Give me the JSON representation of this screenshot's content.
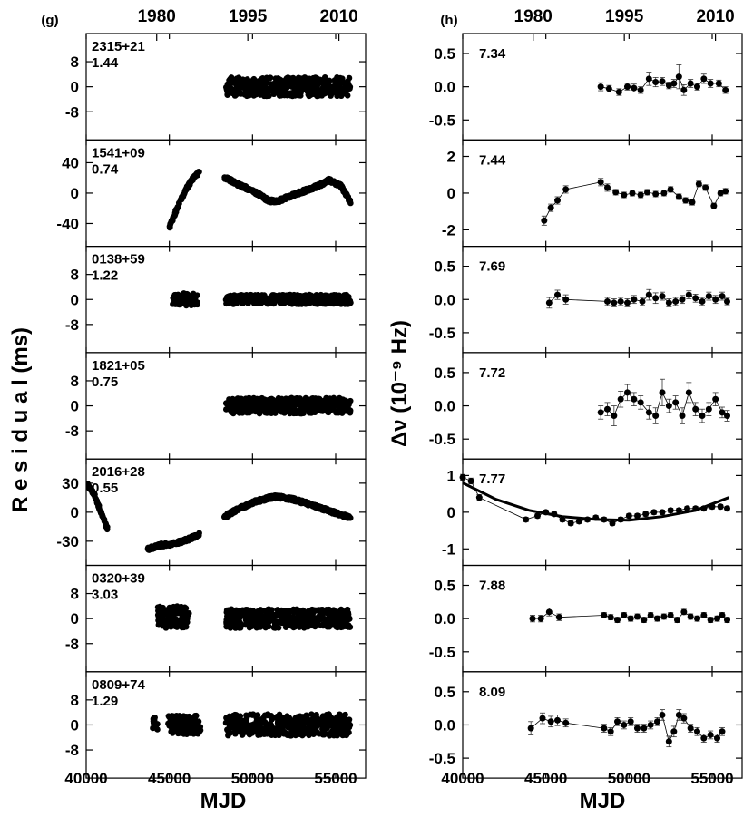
{
  "figure": {
    "left_column": {
      "panel_letter": "(g)",
      "ylabel": "R e s i d u a l  (ms)",
      "xlabel": "MJD",
      "top_ticks": [
        "1980",
        "1995",
        "2010"
      ],
      "bottom_ticks": [
        "40000",
        "45000",
        "50000",
        "55000"
      ]
    },
    "right_column": {
      "panel_letter": "(h)",
      "ylabel": "Δν (10⁻⁹ Hz)",
      "xlabel": "MJD",
      "top_ticks": [
        "1980",
        "1995",
        "2010"
      ],
      "bottom_ticks": [
        "40000",
        "45000",
        "50000",
        "55000"
      ]
    }
  },
  "chart_data": [
    {
      "type": "scatter",
      "column": "left",
      "name": "2315+21",
      "value": "1.44",
      "ylim": [
        -17,
        17
      ],
      "yticks": [
        {
          "v": 8,
          "label": "8"
        },
        {
          "v": 0,
          "label": "0"
        },
        {
          "v": -8,
          "label": "-8"
        }
      ],
      "segments": [
        {
          "x0": 48400,
          "x1": 55900,
          "y_mid": 0,
          "y_spread": 3
        }
      ]
    },
    {
      "type": "scatter",
      "column": "left",
      "name": "1541+09",
      "value": "0.74",
      "ylim": [
        -70,
        70
      ],
      "yticks": [
        {
          "v": 40,
          "label": "40"
        },
        {
          "v": 0,
          "label": "0"
        },
        {
          "v": -40,
          "label": "-40"
        }
      ],
      "segments": [
        {
          "x0": 45000,
          "x1": 46800,
          "curve": [
            [
              45000,
              -45
            ],
            [
              45500,
              -18
            ],
            [
              46000,
              5
            ],
            [
              46500,
              22
            ],
            [
              46800,
              27
            ]
          ]
        },
        {
          "x0": 48300,
          "x1": 55900,
          "curve": [
            [
              48300,
              21
            ],
            [
              49000,
              13
            ],
            [
              50000,
              3
            ],
            [
              51000,
              -10
            ],
            [
              51500,
              -11
            ],
            [
              52000,
              -6
            ],
            [
              53000,
              2
            ],
            [
              54000,
              10
            ],
            [
              54600,
              17
            ],
            [
              55300,
              10
            ],
            [
              55900,
              -12
            ]
          ]
        }
      ]
    },
    {
      "type": "scatter",
      "column": "left",
      "name": "0138+59",
      "value": "1.22",
      "ylim": [
        -17,
        17
      ],
      "yticks": [
        {
          "v": 8,
          "label": "8"
        },
        {
          "v": 0,
          "label": "0"
        },
        {
          "v": -8,
          "label": "-8"
        }
      ],
      "segments": [
        {
          "x0": 45200,
          "x1": 46700,
          "y_mid": 0,
          "y_spread": 2
        },
        {
          "x0": 48400,
          "x1": 55900,
          "y_mid": 0,
          "y_spread": 1.5
        }
      ]
    },
    {
      "type": "scatter",
      "column": "left",
      "name": "1821+05",
      "value": "0.75",
      "ylim": [
        -17,
        17
      ],
      "yticks": [
        {
          "v": 8,
          "label": "8"
        },
        {
          "v": 0,
          "label": "0"
        },
        {
          "v": -8,
          "label": "-8"
        }
      ],
      "segments": [
        {
          "x0": 48400,
          "x1": 55900,
          "y_mid": 0,
          "y_spread": 2.5
        }
      ]
    },
    {
      "type": "scatter",
      "column": "left",
      "name": "2016+28",
      "value": "0.55",
      "ylim": [
        -55,
        55
      ],
      "yticks": [
        {
          "v": 30,
          "label": "30"
        },
        {
          "v": 0,
          "label": "0"
        },
        {
          "v": -30,
          "label": "-30"
        }
      ],
      "segments": [
        {
          "x0": 40000,
          "x1": 41300,
          "curve": [
            [
              40000,
              30
            ],
            [
              40500,
              18
            ],
            [
              41000,
              -5
            ],
            [
              41300,
              -18
            ]
          ]
        },
        {
          "x0": 43700,
          "x1": 46800,
          "curve": [
            [
              43700,
              -38
            ],
            [
              44500,
              -34
            ],
            [
              45200,
              -33
            ],
            [
              46000,
              -29
            ],
            [
              46800,
              -23
            ]
          ]
        },
        {
          "x0": 48300,
          "x1": 55900,
          "curve": [
            [
              48300,
              -5
            ],
            [
              49000,
              2
            ],
            [
              50000,
              10
            ],
            [
              51000,
              15
            ],
            [
              51500,
              16
            ],
            [
              52500,
              13
            ],
            [
              53500,
              8
            ],
            [
              54500,
              2
            ],
            [
              55900,
              -6
            ]
          ]
        }
      ]
    },
    {
      "type": "scatter",
      "column": "left",
      "name": "0320+39",
      "value": "3.03",
      "ylim": [
        -17,
        17
      ],
      "yticks": [
        {
          "v": 8,
          "label": "8"
        },
        {
          "v": 0,
          "label": "0"
        },
        {
          "v": -8,
          "label": "-8"
        }
      ],
      "segments": [
        {
          "x0": 44300,
          "x1": 46200,
          "y_mid": 0.5,
          "y_spread": 3.5
        },
        {
          "x0": 48400,
          "x1": 55900,
          "y_mid": 0,
          "y_spread": 3
        }
      ]
    },
    {
      "type": "scatter",
      "column": "left",
      "name": "0809+74",
      "value": "1.29",
      "ylim": [
        -17,
        17
      ],
      "yticks": [
        {
          "v": 8,
          "label": "8"
        },
        {
          "v": 0,
          "label": "0"
        },
        {
          "v": -8,
          "label": "-8"
        }
      ],
      "segments": [
        {
          "x0": 44000,
          "x1": 44300,
          "y_mid": 0.5,
          "y_spread": 2
        },
        {
          "x0": 44900,
          "x1": 46900,
          "y_mid": 0,
          "y_spread": 3
        },
        {
          "x0": 48400,
          "x1": 55900,
          "y_mid": 0,
          "y_spread": 3.5
        }
      ]
    },
    {
      "type": "line",
      "column": "right",
      "name": "7.34",
      "ylim": [
        -0.8,
        0.8
      ],
      "yticks": [
        {
          "v": 0.5,
          "label": "0.5"
        },
        {
          "v": 0,
          "label": "0.0"
        },
        {
          "v": -0.5,
          "label": "-0.5"
        }
      ],
      "x": [
        48300,
        48800,
        49400,
        49900,
        50300,
        50700,
        51200,
        51600,
        52000,
        52400,
        52700,
        53000,
        53300,
        53700,
        54100,
        54500,
        54900,
        55400,
        55800
      ],
      "y": [
        0.0,
        -0.03,
        -0.08,
        0.0,
        -0.02,
        -0.05,
        0.12,
        0.07,
        0.08,
        0.02,
        0.05,
        0.15,
        -0.05,
        0.05,
        0.0,
        0.12,
        0.05,
        0.05,
        -0.05
      ],
      "err": [
        0.06,
        0.05,
        0.05,
        0.05,
        0.06,
        0.05,
        0.1,
        0.07,
        0.06,
        0.05,
        0.06,
        0.18,
        0.08,
        0.06,
        0.05,
        0.07,
        0.06,
        0.05,
        0.05
      ]
    },
    {
      "type": "line",
      "column": "right",
      "name": "7.44",
      "ylim": [
        -2.9,
        2.9
      ],
      "yticks": [
        {
          "v": 2,
          "label": "2"
        },
        {
          "v": 0,
          "label": "0"
        },
        {
          "v": -2,
          "label": "-2"
        }
      ],
      "x": [
        44900,
        45300,
        45700,
        46200,
        48300,
        48700,
        49200,
        49700,
        50200,
        50700,
        51100,
        51600,
        52100,
        52500,
        53000,
        53400,
        53800,
        54200,
        54600,
        55100,
        55500,
        55800
      ],
      "y": [
        -1.5,
        -0.8,
        -0.4,
        0.2,
        0.6,
        0.3,
        0.05,
        -0.1,
        0.0,
        -0.1,
        0.05,
        -0.05,
        0.0,
        0.2,
        -0.2,
        -0.4,
        -0.5,
        0.5,
        0.3,
        -0.7,
        0.0,
        0.1
      ],
      "err": [
        0.25,
        0.2,
        0.2,
        0.2,
        0.2,
        0.2,
        0.15,
        0.15,
        0.15,
        0.15,
        0.15,
        0.15,
        0.15,
        0.15,
        0.15,
        0.15,
        0.15,
        0.15,
        0.15,
        0.15,
        0.15,
        0.15
      ]
    },
    {
      "type": "line",
      "column": "right",
      "name": "7.69",
      "ylim": [
        -0.8,
        0.8
      ],
      "yticks": [
        {
          "v": 0.5,
          "label": "0.5"
        },
        {
          "v": 0,
          "label": "0.0"
        },
        {
          "v": -0.5,
          "label": "-0.5"
        }
      ],
      "x": [
        45200,
        45700,
        46200,
        48700,
        49100,
        49500,
        49900,
        50300,
        50800,
        51200,
        51600,
        52000,
        52400,
        52800,
        53200,
        53600,
        54000,
        54400,
        54800,
        55200,
        55600,
        55900
      ],
      "y": [
        -0.05,
        0.07,
        0.0,
        -0.03,
        -0.05,
        -0.03,
        -0.05,
        0.0,
        -0.03,
        0.07,
        0.02,
        0.05,
        -0.05,
        -0.03,
        0.0,
        0.07,
        0.02,
        -0.03,
        0.05,
        0.0,
        0.05,
        -0.03
      ],
      "err": [
        0.08,
        0.07,
        0.07,
        0.06,
        0.06,
        0.06,
        0.06,
        0.06,
        0.06,
        0.08,
        0.08,
        0.06,
        0.06,
        0.06,
        0.06,
        0.06,
        0.06,
        0.06,
        0.06,
        0.06,
        0.06,
        0.05
      ]
    },
    {
      "type": "line",
      "column": "right",
      "name": "7.72",
      "ylim": [
        -0.8,
        0.8
      ],
      "yticks": [
        {
          "v": 0.5,
          "label": "0.5"
        },
        {
          "v": 0,
          "label": "0.0"
        },
        {
          "v": -0.5,
          "label": "-0.5"
        }
      ],
      "x": [
        48300,
        48700,
        49100,
        49500,
        49900,
        50300,
        50700,
        51200,
        51600,
        52000,
        52400,
        52800,
        53200,
        53600,
        54000,
        54400,
        54800,
        55200,
        55600,
        55900
      ],
      "y": [
        -0.1,
        -0.05,
        -0.15,
        0.1,
        0.2,
        0.1,
        0.05,
        -0.1,
        -0.15,
        0.2,
        0.0,
        0.05,
        -0.15,
        0.2,
        -0.05,
        -0.15,
        -0.05,
        0.1,
        -0.1,
        -0.15
      ],
      "err": [
        0.1,
        0.1,
        0.15,
        0.12,
        0.12,
        0.1,
        0.1,
        0.1,
        0.12,
        0.2,
        0.1,
        0.1,
        0.12,
        0.15,
        0.1,
        0.1,
        0.1,
        0.1,
        0.08,
        0.08
      ]
    },
    {
      "type": "line",
      "column": "right",
      "name": "7.77",
      "ylim": [
        -1.45,
        1.45
      ],
      "yticks": [
        {
          "v": 1,
          "label": "1"
        },
        {
          "v": 0,
          "label": "0"
        },
        {
          "v": -1,
          "label": "-1"
        }
      ],
      "x": [
        40000,
        40500,
        41000,
        43800,
        44500,
        45000,
        45500,
        46000,
        46500,
        47000,
        47500,
        48000,
        48500,
        49000,
        49500,
        50000,
        50500,
        51000,
        51500,
        52000,
        52500,
        53000,
        53500,
        54000,
        54500,
        55000,
        55500,
        55900
      ],
      "y": [
        0.95,
        0.85,
        0.4,
        -0.2,
        -0.1,
        0.0,
        -0.05,
        -0.2,
        -0.3,
        -0.25,
        -0.2,
        -0.15,
        -0.2,
        -0.3,
        -0.2,
        -0.1,
        -0.1,
        -0.05,
        0.0,
        0.0,
        0.05,
        0.05,
        0.1,
        0.1,
        0.1,
        0.15,
        0.15,
        0.1
      ],
      "err": [
        0.08,
        0.08,
        0.08,
        0.06,
        0.06,
        0.06,
        0.06,
        0.06,
        0.06,
        0.06,
        0.06,
        0.06,
        0.06,
        0.06,
        0.06,
        0.06,
        0.06,
        0.06,
        0.06,
        0.06,
        0.06,
        0.06,
        0.06,
        0.06,
        0.06,
        0.06,
        0.06,
        0.06
      ],
      "fit_curve": [
        [
          40000,
          0.8
        ],
        [
          42000,
          0.35
        ],
        [
          44000,
          0.05
        ],
        [
          46000,
          -0.12
        ],
        [
          48000,
          -0.2
        ],
        [
          50000,
          -0.22
        ],
        [
          52000,
          -0.12
        ],
        [
          54000,
          0.05
        ],
        [
          56000,
          0.4
        ]
      ]
    },
    {
      "type": "line",
      "column": "right",
      "name": "7.88",
      "ylim": [
        -0.8,
        0.8
      ],
      "yticks": [
        {
          "v": 0.5,
          "label": "0.5"
        },
        {
          "v": 0,
          "label": "0.0"
        },
        {
          "v": -0.5,
          "label": "-0.5"
        }
      ],
      "x": [
        44200,
        44700,
        45200,
        45800,
        48500,
        48900,
        49300,
        49700,
        50100,
        50500,
        50900,
        51300,
        51700,
        52100,
        52500,
        52900,
        53300,
        53700,
        54100,
        54500,
        54900,
        55300,
        55600,
        55900
      ],
      "y": [
        0.0,
        0.0,
        0.1,
        0.02,
        0.05,
        0.02,
        -0.02,
        0.05,
        0.0,
        0.03,
        -0.02,
        0.05,
        0.0,
        0.03,
        0.05,
        -0.02,
        0.1,
        0.03,
        0.0,
        0.05,
        -0.02,
        0.0,
        0.05,
        -0.02
      ],
      "err": [
        0.05,
        0.05,
        0.06,
        0.05,
        0.04,
        0.04,
        0.04,
        0.04,
        0.04,
        0.04,
        0.04,
        0.04,
        0.04,
        0.04,
        0.04,
        0.04,
        0.04,
        0.04,
        0.04,
        0.04,
        0.04,
        0.04,
        0.04,
        0.04
      ]
    },
    {
      "type": "line",
      "column": "right",
      "name": "8.09",
      "ylim": [
        -0.8,
        0.8
      ],
      "yticks": [
        {
          "v": 0.5,
          "label": "0.5"
        },
        {
          "v": 0,
          "label": "0.0"
        },
        {
          "v": -0.5,
          "label": "-0.5"
        }
      ],
      "x": [
        44100,
        44800,
        45300,
        45700,
        46200,
        48500,
        48900,
        49300,
        49700,
        50100,
        50500,
        50900,
        51300,
        51700,
        52000,
        52400,
        52700,
        53000,
        53300,
        53700,
        54100,
        54500,
        54900,
        55300,
        55600
      ],
      "y": [
        -0.05,
        0.1,
        0.05,
        0.07,
        0.03,
        -0.05,
        -0.1,
        0.05,
        0.0,
        0.05,
        -0.05,
        -0.05,
        0.0,
        0.05,
        0.15,
        -0.25,
        -0.1,
        0.15,
        0.1,
        -0.05,
        -0.1,
        -0.2,
        -0.15,
        -0.2,
        -0.1
      ],
      "err": [
        0.1,
        0.08,
        0.08,
        0.08,
        0.06,
        0.06,
        0.06,
        0.06,
        0.06,
        0.06,
        0.06,
        0.06,
        0.06,
        0.06,
        0.08,
        0.08,
        0.08,
        0.08,
        0.07,
        0.06,
        0.06,
        0.06,
        0.06,
        0.06,
        0.06
      ]
    }
  ]
}
